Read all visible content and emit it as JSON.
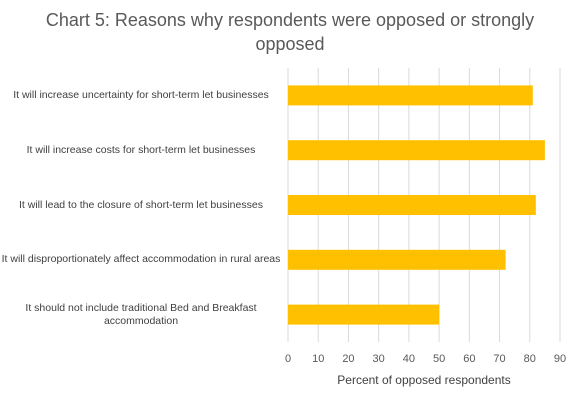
{
  "chart_data": {
    "type": "bar",
    "orientation": "horizontal",
    "title": "Chart 5: Reasons why respondents were opposed or strongly opposed",
    "xlabel": "Percent of opposed respondents",
    "ylabel": "",
    "categories": [
      "It will increase uncertainty for short-term let businesses",
      "It will increase costs for short-term let businesses",
      "It will lead to the closure of short-term let businesses",
      "It will disproportionately affect accommodation in rural areas",
      "It should not include traditional Bed and Breakfast accommodation"
    ],
    "values": [
      81,
      85,
      82,
      72,
      50
    ],
    "xlim": [
      0,
      90
    ],
    "xticks": [
      "0",
      "10",
      "20",
      "30",
      "40",
      "50",
      "60",
      "70",
      "80",
      "90"
    ],
    "grid": true,
    "bar_color": "#FFC000",
    "legend": "none"
  }
}
